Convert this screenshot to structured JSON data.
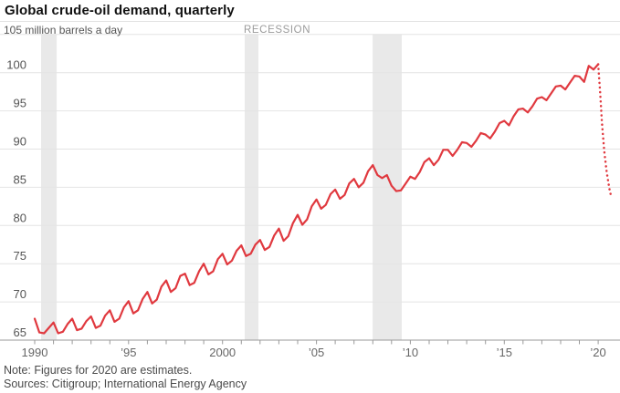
{
  "header": {
    "title": "Global crude-oil demand, quarterly"
  },
  "chart": {
    "unit_label": "105 million barrels a day",
    "recession_label": "RECESSION",
    "colors": {
      "line": "#e0393f",
      "band": "#e9e9e9",
      "grid": "#e4e4e4",
      "axis": "#999999",
      "tick": "#999999",
      "x_label": "#666666",
      "y_label": "#555555"
    }
  },
  "chart_data": {
    "type": "line",
    "title": "Global crude-oil demand, quarterly",
    "ylabel": "million barrels a day",
    "ylim": [
      65,
      105
    ],
    "yticks": [
      65,
      70,
      75,
      80,
      85,
      90,
      95,
      100,
      105
    ],
    "xlim": [
      1990,
      2020.85
    ],
    "x_tick_step_years": 1,
    "xticks": [
      {
        "t": 1990,
        "label": "1990"
      },
      {
        "t": 1995,
        "label": "’95"
      },
      {
        "t": 2000,
        "label": "2000"
      },
      {
        "t": 2005,
        "label": "’05"
      },
      {
        "t": 2010,
        "label": "’10"
      },
      {
        "t": 2015,
        "label": "’15"
      },
      {
        "t": 2020,
        "label": "’20"
      }
    ],
    "recession_bands": [
      [
        1990.34,
        1991.17
      ],
      [
        2001.18,
        2001.91
      ],
      [
        2007.99,
        2009.54
      ]
    ],
    "series": [
      {
        "name": "Global crude-oil demand (quarterly, million barrels a day)",
        "style": "solid",
        "x_start": 1990.0,
        "x_step": 0.25,
        "values": [
          67.8,
          66.0,
          65.9,
          66.6,
          67.3,
          65.9,
          66.1,
          67.1,
          67.8,
          66.3,
          66.5,
          67.5,
          68.1,
          66.6,
          66.9,
          68.2,
          68.9,
          67.4,
          67.8,
          69.3,
          70.1,
          68.5,
          68.9,
          70.4,
          71.3,
          69.8,
          70.3,
          72.0,
          72.8,
          71.3,
          71.8,
          73.4,
          73.7,
          72.2,
          72.5,
          74.0,
          75.0,
          73.6,
          74.0,
          75.6,
          76.3,
          74.9,
          75.4,
          76.7,
          77.4,
          76.0,
          76.3,
          77.5,
          78.1,
          76.8,
          77.2,
          78.7,
          79.6,
          78.0,
          78.6,
          80.3,
          81.4,
          80.1,
          80.8,
          82.5,
          83.4,
          82.2,
          82.7,
          84.1,
          84.7,
          83.5,
          84.0,
          85.5,
          86.1,
          85.0,
          85.6,
          87.1,
          87.9,
          86.6,
          86.2,
          86.6,
          85.2,
          84.5,
          84.6,
          85.5,
          86.4,
          86.1,
          87.0,
          88.3,
          88.8,
          87.9,
          88.6,
          89.9,
          89.9,
          89.1,
          89.9,
          90.9,
          90.8,
          90.3,
          91.1,
          92.1,
          91.9,
          91.4,
          92.3,
          93.4,
          93.7,
          93.1,
          94.3,
          95.2,
          95.3,
          94.8,
          95.6,
          96.6,
          96.8,
          96.4,
          97.3,
          98.2,
          98.3,
          97.8,
          98.7,
          99.6,
          99.5,
          98.8,
          100.9,
          100.4,
          101.1
        ]
      },
      {
        "name": "2020 estimate",
        "style": "dotted",
        "x": [
          2020.0,
          2020.1,
          2020.2,
          2020.32,
          2020.45,
          2020.6,
          2020.68
        ],
        "values": [
          101.1,
          97.5,
          93.5,
          89.8,
          87.0,
          84.8,
          83.9
        ]
      }
    ]
  },
  "footer": {
    "note": "Note: Figures for 2020 are estimates.",
    "sources": "Sources: Citigroup; International Energy Agency"
  }
}
